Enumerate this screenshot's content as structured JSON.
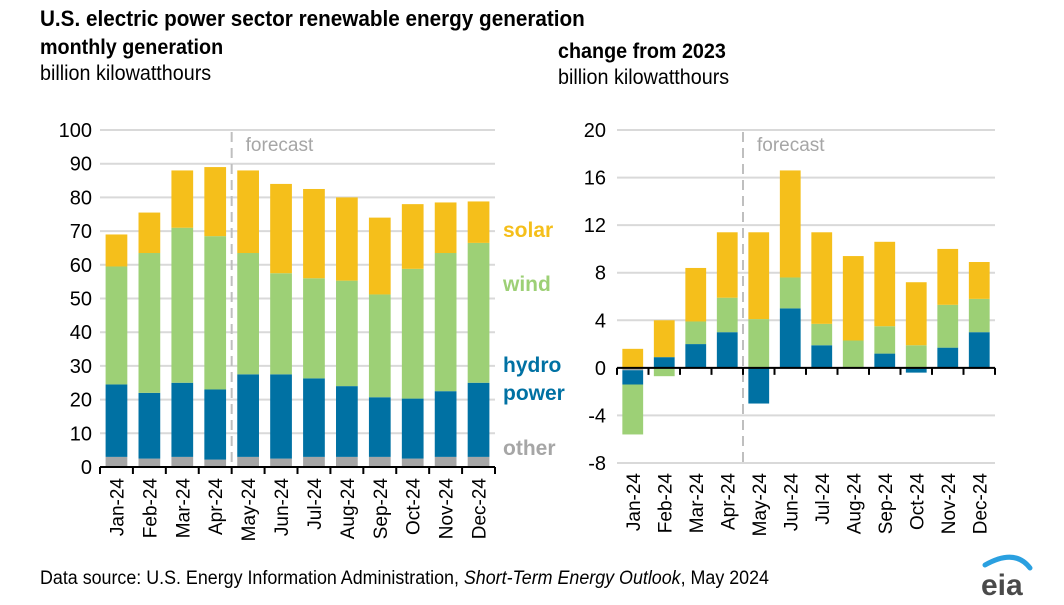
{
  "title": "U.S. electric power sector renewable energy generation",
  "source": {
    "prefix": "Data source: U.S. Energy Information Administration, ",
    "publication": "Short-Term Energy Outlook",
    "suffix": ", May 2024"
  },
  "logo": "eia",
  "colors": {
    "solar": "#f5bf1b",
    "wind": "#9dd076",
    "hydro": "#0071a3",
    "other": "#a6a6a6",
    "grid": "#d9d9d9",
    "forecast": "#a6a6a6"
  },
  "chart_data": [
    {
      "type": "bar",
      "stacked": true,
      "title": "monthly generation",
      "ylabel": "billion kilowatthours",
      "ylim": [
        0,
        100
      ],
      "yticks": [
        0,
        10,
        20,
        30,
        40,
        50,
        60,
        70,
        80,
        90,
        100
      ],
      "grid": true,
      "forecast_label": "forecast",
      "forecast_start": "May-24",
      "legend_position": "right",
      "categories": [
        "Jan-24",
        "Feb-24",
        "Mar-24",
        "Apr-24",
        "May-24",
        "Jun-24",
        "Jul-24",
        "Aug-24",
        "Sep-24",
        "Oct-24",
        "Nov-24",
        "Dec-24"
      ],
      "series": [
        {
          "name": "other",
          "key": "other",
          "values": [
            3,
            2.5,
            3,
            2.2,
            3,
            2.5,
            3,
            3,
            3,
            2.5,
            3,
            3
          ]
        },
        {
          "name": "hydro power",
          "key": "hydro",
          "values": [
            21.5,
            19.5,
            22,
            20.8,
            24.5,
            25,
            23.3,
            21,
            17.7,
            17.8,
            19.5,
            22
          ]
        },
        {
          "name": "wind",
          "key": "wind",
          "values": [
            35,
            41.5,
            46,
            45.5,
            36,
            30,
            29.7,
            31.3,
            30.5,
            38.5,
            41,
            41.5
          ]
        },
        {
          "name": "solar",
          "key": "solar",
          "values": [
            9.5,
            12,
            17,
            20.5,
            24.5,
            26.5,
            26.5,
            24.7,
            22.8,
            19.2,
            15,
            12.3
          ]
        }
      ]
    },
    {
      "type": "bar",
      "stacked": true,
      "title": "change from 2023",
      "ylabel": "billion kilowatthours",
      "ylim": [
        -8,
        20
      ],
      "yticks": [
        -8,
        -4,
        0,
        4,
        8,
        12,
        16,
        20
      ],
      "grid": true,
      "forecast_label": "forecast",
      "forecast_start": "May-24",
      "categories": [
        "Jan-24",
        "Feb-24",
        "Mar-24",
        "Apr-24",
        "May-24",
        "Jun-24",
        "Jul-24",
        "Aug-24",
        "Sep-24",
        "Oct-24",
        "Nov-24",
        "Dec-24"
      ],
      "series": [
        {
          "name": "other",
          "key": "other",
          "values": [
            -0.2,
            0,
            0,
            0,
            0,
            0,
            0,
            0,
            0,
            0,
            0,
            -0.1
          ]
        },
        {
          "name": "hydro power",
          "key": "hydro",
          "values": [
            -1.2,
            0.9,
            2.0,
            3.0,
            -3.0,
            5.0,
            1.9,
            0,
            1.2,
            -0.4,
            1.7,
            3.0
          ]
        },
        {
          "name": "wind",
          "key": "wind",
          "values": [
            -4.2,
            -0.7,
            1.9,
            2.9,
            4.1,
            2.6,
            1.8,
            2.3,
            2.3,
            1.9,
            3.6,
            2.8
          ]
        },
        {
          "name": "solar",
          "key": "solar",
          "values": [
            1.6,
            3.1,
            4.5,
            5.5,
            7.3,
            9.0,
            7.7,
            7.1,
            7.1,
            5.3,
            4.7,
            3.1
          ]
        }
      ]
    }
  ],
  "legend": [
    {
      "key": "solar",
      "label": "solar"
    },
    {
      "key": "wind",
      "label": "wind"
    },
    {
      "key": "hydro",
      "label": "hydro"
    },
    {
      "key": "hydro",
      "label": "power"
    },
    {
      "key": "other",
      "label": "other"
    }
  ]
}
